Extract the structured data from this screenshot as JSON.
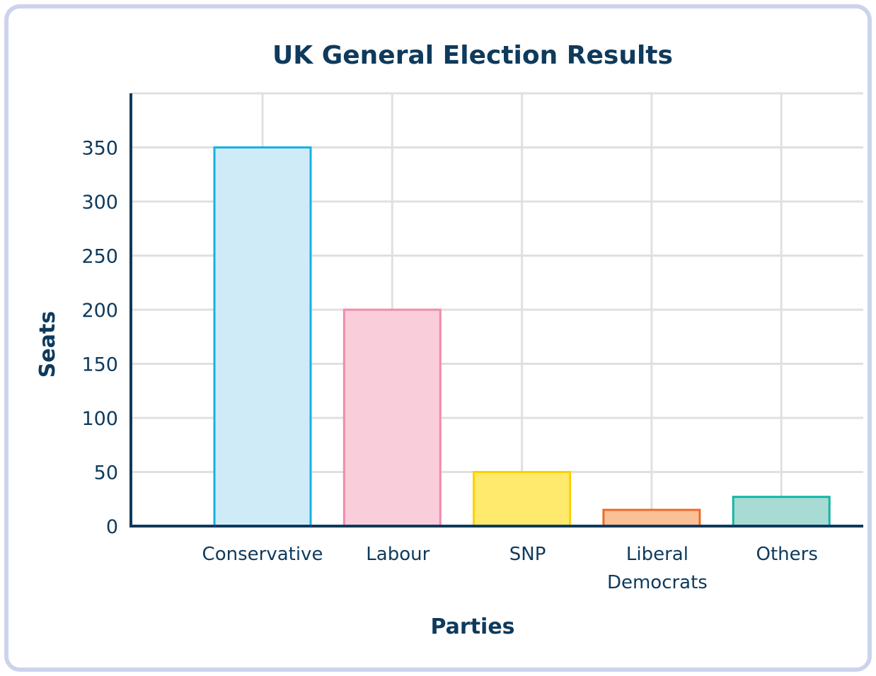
{
  "chart_data": {
    "type": "bar",
    "title": "UK General Election Results",
    "xlabel": "Parties",
    "ylabel": "Seats",
    "categories": [
      "Conservative",
      "Labour",
      "SNP",
      "Liberal Democrats",
      "Others"
    ],
    "category_lines": [
      [
        "Conservative"
      ],
      [
        "Labour"
      ],
      [
        "SNP"
      ],
      [
        "Liberal",
        "Democrats"
      ],
      [
        "Others"
      ]
    ],
    "values": [
      350,
      200,
      50,
      15,
      27
    ],
    "ylim": [
      0,
      400
    ],
    "yticks": [
      0,
      50,
      100,
      150,
      200,
      250,
      300,
      350
    ],
    "grid": true,
    "colors": {
      "fill": [
        "#d0ebf8",
        "#f9cdd9",
        "#ffea6e",
        "#fcc096",
        "#a8dbd4"
      ],
      "stroke": [
        "#15b1e3",
        "#f18aab",
        "#fcd100",
        "#ef6a28",
        "#14b5a6"
      ],
      "axis": "#0e3a5c",
      "grid": "#e0e0e0",
      "frame": "#cdd3ec"
    }
  }
}
